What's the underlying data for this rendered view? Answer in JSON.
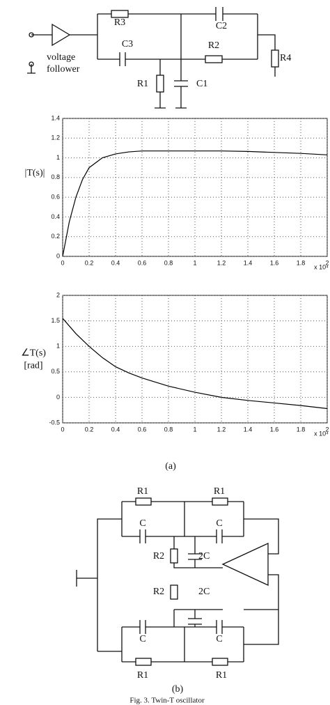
{
  "circuit_a": {
    "labels": [
      "R3",
      "C2",
      "C3",
      "R2",
      "R4",
      "R1",
      "C1"
    ],
    "follower": [
      "voltage",
      "follower"
    ]
  },
  "chart_data": [
    {
      "type": "line",
      "ylabel": "|T(s)|",
      "x_multiplier": "x 10⁴",
      "x": [
        0,
        0.05,
        0.1,
        0.15,
        0.2,
        0.3,
        0.4,
        0.5,
        0.6,
        0.7,
        0.8,
        1,
        1.2,
        1.4,
        1.6,
        1.8,
        2
      ],
      "series": [
        {
          "color": "#000000",
          "values": [
            0,
            0.35,
            0.6,
            0.78,
            0.9,
            1.0,
            1.04,
            1.06,
            1.07,
            1.07,
            1.07,
            1.07,
            1.07,
            1.065,
            1.055,
            1.045,
            1.03
          ]
        }
      ],
      "xlim": [
        0,
        2
      ],
      "xticks": [
        0,
        0.2,
        0.4,
        0.6,
        0.8,
        1,
        1.2,
        1.4,
        1.6,
        1.8,
        2
      ],
      "ylim": [
        0,
        1.4
      ],
      "yticks": [
        0,
        0.2,
        0.4,
        0.6,
        0.8,
        1,
        1.2,
        1.4
      ],
      "grid": true
    },
    {
      "type": "line",
      "ylabel": [
        "∠T(s)",
        "[rad]"
      ],
      "x_multiplier": "x 10⁴",
      "x": [
        0,
        0.1,
        0.2,
        0.3,
        0.4,
        0.5,
        0.6,
        0.8,
        1,
        1.2,
        1.4,
        1.6,
        1.8,
        2
      ],
      "series": [
        {
          "color": "#000000",
          "values": [
            1.55,
            1.25,
            1.0,
            0.78,
            0.6,
            0.48,
            0.38,
            0.22,
            0.1,
            0,
            -0.06,
            -0.11,
            -0.16,
            -0.22
          ]
        }
      ],
      "xlim": [
        0,
        2
      ],
      "xticks": [
        0,
        0.2,
        0.4,
        0.6,
        0.8,
        1,
        1.2,
        1.4,
        1.6,
        1.8,
        2
      ],
      "ylim": [
        -0.5,
        2
      ],
      "yticks": [
        -0.5,
        0,
        0.5,
        1,
        1.5,
        2
      ],
      "grid": true
    }
  ],
  "panel_a": "(a)",
  "circuit_b": {
    "labels": [
      "R1",
      "R1",
      "C",
      "C",
      "R2",
      "2C",
      "R2",
      "2C",
      "C",
      "C",
      "R1",
      "R1"
    ]
  },
  "panel_b": "(b)",
  "caption": "Fig. 3. Twin-T oscillator"
}
